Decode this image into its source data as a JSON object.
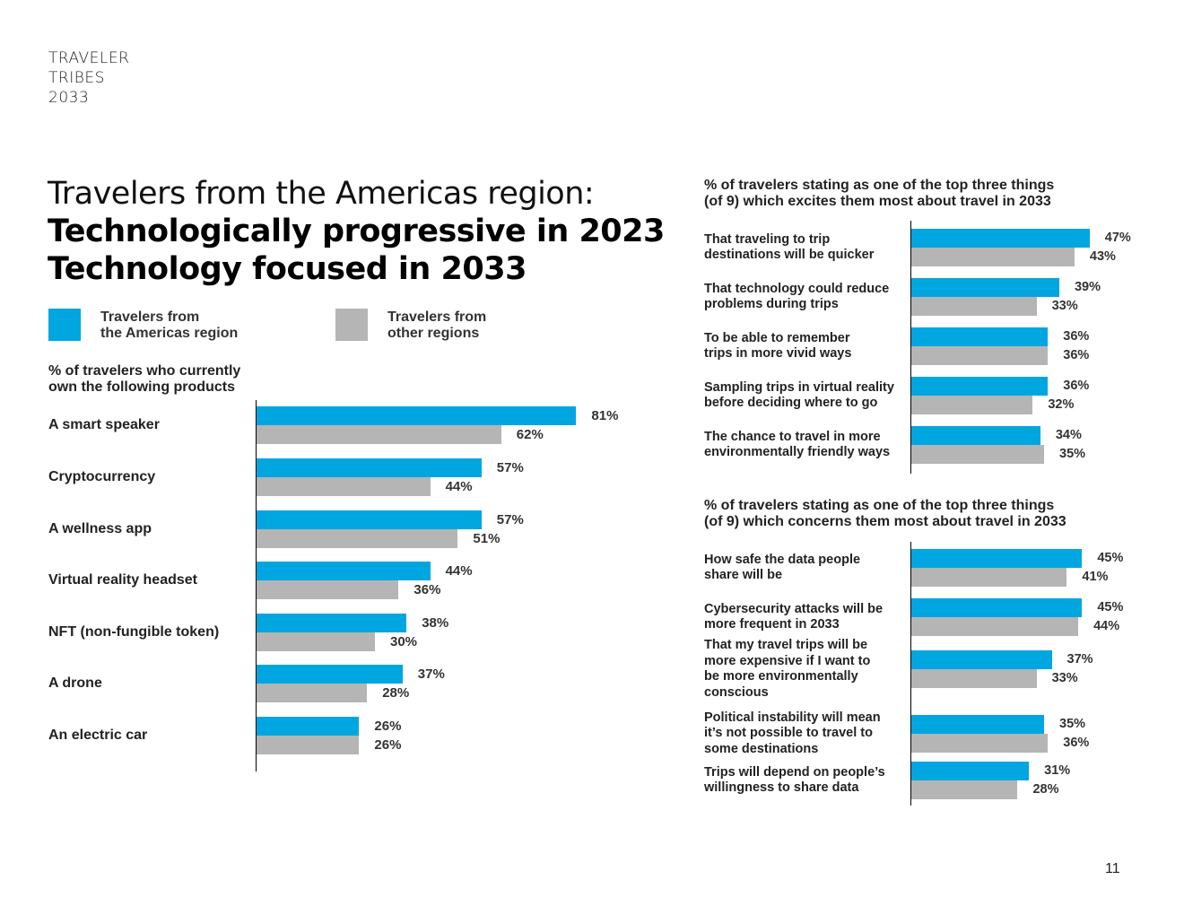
{
  "brand": [
    "TRAVELER",
    "TRIBES",
    "2033"
  ],
  "headline": {
    "light": "Travelers from the Americas region:",
    "bold_line1": "Technologically progressive in 2023",
    "bold_line2": "Technology focused in 2033"
  },
  "colors": {
    "americas": "#00a6e0",
    "other": "#b5b5b5"
  },
  "legend": [
    {
      "line1": "Travelers from",
      "line2": "the Americas region"
    },
    {
      "line1": "Travelers from",
      "line2": "other regions"
    }
  ],
  "page_number": "11",
  "chart_data": [
    {
      "type": "bar",
      "orientation": "horizontal",
      "title": "% of travelers who currently own the following products",
      "title_lines": [
        "% of travelers who currently",
        "own the following products"
      ],
      "categories": [
        "A smart speaker",
        "Cryptocurrency",
        "A wellness app",
        "Virtual reality headset",
        "NFT (non-fungible token)",
        "A drone",
        "An electric car"
      ],
      "category_lines": [
        [
          "A smart speaker"
        ],
        [
          "Cryptocurrency"
        ],
        [
          "A wellness app"
        ],
        [
          "Virtual reality headset"
        ],
        [
          "NFT (non-fungible token)"
        ],
        [
          "A drone"
        ],
        [
          "An electric car"
        ]
      ],
      "series": [
        {
          "name": "Travelers from the Americas region",
          "values": [
            81,
            57,
            57,
            44,
            38,
            37,
            26
          ]
        },
        {
          "name": "Travelers from other regions",
          "values": [
            62,
            44,
            51,
            36,
            30,
            28,
            26
          ]
        }
      ],
      "value_suffix": "%",
      "legend_position": "top",
      "grid": false
    },
    {
      "type": "bar",
      "orientation": "horizontal",
      "title": "% of travelers stating as one of the top three things (of 9) which excites them most about travel in 2033",
      "title_lines": [
        "% of travelers stating as one of the top three things",
        "(of 9) which excites them most about travel in 2033"
      ],
      "categories": [
        "That traveling to trip destinations will be quicker",
        "That technology could reduce problems during trips",
        "To be able to remember trips in more vivid ways",
        "Sampling trips in virtual reality before deciding where to go",
        "The chance to travel in more environmentally friendly ways"
      ],
      "category_lines": [
        [
          "That traveling to trip",
          "destinations will be quicker"
        ],
        [
          "That technology could reduce",
          "problems during trips"
        ],
        [
          "To be able to remember",
          "trips in more vivid ways"
        ],
        [
          "Sampling trips in virtual reality",
          "before deciding where to go"
        ],
        [
          "The chance to travel in more",
          "environmentally friendly ways"
        ]
      ],
      "series": [
        {
          "name": "Travelers from the Americas region",
          "values": [
            47,
            39,
            36,
            36,
            34
          ]
        },
        {
          "name": "Travelers from other regions",
          "values": [
            43,
            33,
            36,
            32,
            35
          ]
        }
      ],
      "value_suffix": "%",
      "grid": false
    },
    {
      "type": "bar",
      "orientation": "horizontal",
      "title": "% of travelers stating as one of the top three things (of 9) which concerns them most about travel in 2033",
      "title_lines": [
        "% of travelers stating as one of the top three things",
        "(of 9) which concerns them most about travel in 2033"
      ],
      "categories": [
        "How safe the data people share will be",
        "Cybersecurity attacks will be more frequent in 2033",
        "That my travel trips will be more expensive if I want to be more environmentally conscious",
        "Political instability will mean it's not possible to travel to some destinations",
        "Trips will depend on people's willingness to share data"
      ],
      "category_lines": [
        [
          "How safe the data people",
          "share will be"
        ],
        [
          "Cybersecurity attacks will be",
          "more frequent in 2033"
        ],
        [
          "That my travel trips will be",
          "more expensive if I want to",
          "be more environmentally",
          "conscious"
        ],
        [
          "Political instability will mean",
          "it’s not possible to travel to",
          "some destinations"
        ],
        [
          "Trips will depend on people’s",
          "willingness to share data"
        ]
      ],
      "series": [
        {
          "name": "Travelers from the Americas region",
          "values": [
            45,
            45,
            37,
            35,
            31
          ]
        },
        {
          "name": "Travelers from other regions",
          "values": [
            41,
            44,
            33,
            36,
            28
          ]
        }
      ],
      "value_suffix": "%",
      "grid": false
    }
  ]
}
